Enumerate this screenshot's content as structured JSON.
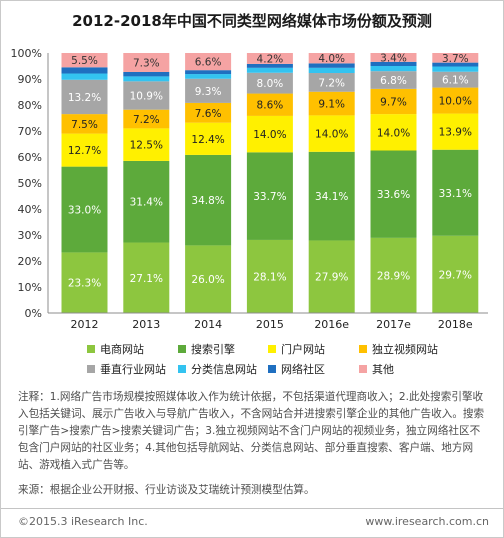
{
  "chart_data": {
    "type": "bar",
    "stacked": true,
    "title": "2012-2018年中国不同类型网络媒体市场份额及预测",
    "xlabel": "",
    "ylabel": "",
    "categories": [
      "2012",
      "2013",
      "2014",
      "2015",
      "2016e",
      "2017e",
      "2018e"
    ],
    "ylim": [
      0,
      100
    ],
    "y_ticks": [
      0,
      10,
      20,
      30,
      40,
      50,
      60,
      70,
      80,
      90,
      100
    ],
    "y_tick_labels": [
      "0%",
      "10%",
      "20%",
      "30%",
      "40%",
      "50%",
      "60%",
      "70%",
      "80%",
      "90%",
      "100%"
    ],
    "value_suffix": "%",
    "grid": false,
    "legend": "bottom",
    "series": [
      {
        "name": "电商网站",
        "color": "#8DC63F",
        "label_color": "#ffffff",
        "show_labels": true,
        "values": [
          23.3,
          27.1,
          26.0,
          28.1,
          27.9,
          28.9,
          29.7
        ]
      },
      {
        "name": "搜索引擎",
        "color": "#5DAA3B",
        "label_color": "#ffffff",
        "show_labels": true,
        "values": [
          33.0,
          31.4,
          34.8,
          33.7,
          34.1,
          33.6,
          33.1
        ]
      },
      {
        "name": "门户网站",
        "color": "#FFF000",
        "label_color": "#222222",
        "show_labels": true,
        "values": [
          12.7,
          12.5,
          12.4,
          14.0,
          14.0,
          14.0,
          13.9
        ]
      },
      {
        "name": "独立视频网站",
        "color": "#FFC000",
        "label_color": "#222222",
        "show_labels": true,
        "values": [
          7.5,
          7.2,
          7.6,
          8.6,
          9.1,
          9.7,
          10.0
        ]
      },
      {
        "name": "垂直行业网站",
        "color": "#A6A6A6",
        "label_color": "#ffffff",
        "show_labels": true,
        "values": [
          13.2,
          10.9,
          9.3,
          8.0,
          7.2,
          6.8,
          6.1
        ]
      },
      {
        "name": "分类信息网站",
        "color": "#33C3F0",
        "label_color": "#222222",
        "show_labels": false,
        "values": [
          2.4,
          1.9,
          1.8,
          1.9,
          2.0,
          2.0,
          2.0
        ]
      },
      {
        "name": "网络社区",
        "color": "#1F6FC0",
        "label_color": "#ffffff",
        "show_labels": false,
        "values": [
          2.4,
          1.7,
          1.5,
          1.5,
          1.7,
          1.6,
          1.5
        ]
      },
      {
        "name": "其他",
        "color": "#F5A3A3",
        "label_color": "#333333",
        "show_labels": true,
        "values": [
          5.5,
          7.3,
          6.6,
          4.2,
          4.0,
          3.4,
          3.7
        ]
      }
    ]
  },
  "notes": {
    "text": "注释：1.网络广告市场规模按照媒体收入作为统计依据，不包括渠道代理商收入；2.此处搜索引擎收入包括关键词、展示广告收入与导航广告收入，不含网站合并进搜索引擎企业的其他广告收入。搜索引擎广告>搜索广告>搜索关键词广告；3.独立视频网站不含门户网站的视频业务，独立网络社区不包含门户网站的社区业务；4.其他包括导航网站、分类信息网站、部分垂直搜索、客户端、地方网站、游戏植入式广告等。",
    "source": "来源：根据企业公开财报、行业访谈及艾瑞统计预测模型估算。"
  },
  "footer": {
    "copyright": "©2015.3 iResearch Inc.",
    "website": "www.iresearch.com.cn"
  }
}
